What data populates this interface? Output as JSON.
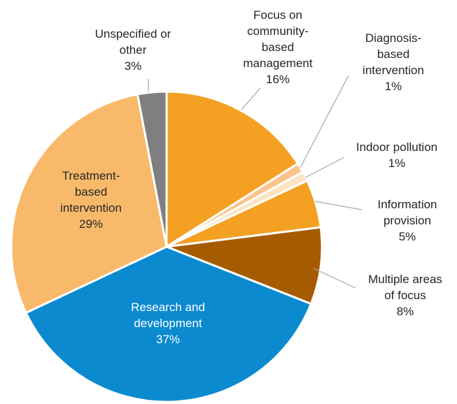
{
  "chart_data": {
    "type": "pie",
    "title": "",
    "slices": [
      {
        "label": [
          "Focus on",
          "community-",
          "based",
          "management"
        ],
        "value": 16,
        "value_label": "16%",
        "color": "#F4A022",
        "text_color": "#262626",
        "label_inside": false
      },
      {
        "label": [
          "Diagnosis-",
          "based",
          "intervention"
        ],
        "value": 1,
        "value_label": "1%",
        "color": "#FBC48A",
        "text_color": "#262626",
        "label_inside": false
      },
      {
        "label": [
          "Indoor pollution"
        ],
        "value": 1,
        "value_label": "1%",
        "color": "#FDE3C4",
        "text_color": "#262626",
        "label_inside": false
      },
      {
        "label": [
          "Information",
          "provision"
        ],
        "value": 5,
        "value_label": "5%",
        "color": "#F4A022",
        "text_color": "#262626",
        "label_inside": false
      },
      {
        "label": [
          "Multiple areas",
          "of focus"
        ],
        "value": 8,
        "value_label": "8%",
        "color": "#A55B00",
        "text_color": "#262626",
        "label_inside": false
      },
      {
        "label": [
          "Research and",
          "development"
        ],
        "value": 37,
        "value_label": "37%",
        "color": "#0B8ACF",
        "text_color": "#ffffff",
        "label_inside": true
      },
      {
        "label": [
          "Treatment-",
          "based",
          "intervention"
        ],
        "value": 29,
        "value_label": "29%",
        "color": "#F8BA6A",
        "text_color": "#262626",
        "label_inside": true
      },
      {
        "label": [
          "Unspecified or",
          "other"
        ],
        "value": 3,
        "value_label": "3%",
        "color": "#7F7F7F",
        "text_color": "#262626",
        "label_inside": false
      }
    ]
  }
}
